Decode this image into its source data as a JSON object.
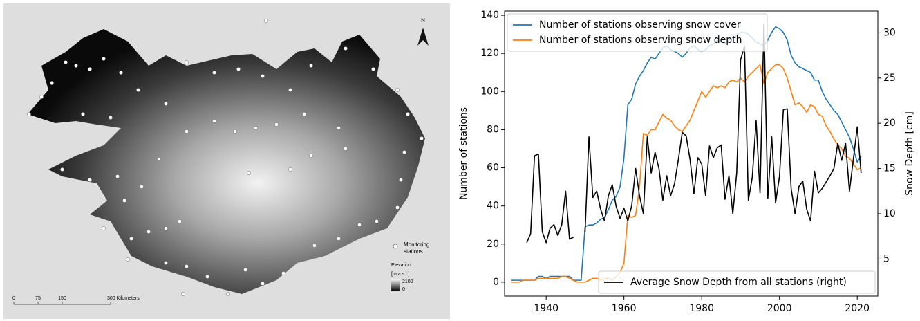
{
  "map": {
    "north": "N",
    "station_label": [
      "Monitoring",
      "stations"
    ],
    "elevation_title": "Elevation",
    "elevation_unit": "[m a.s.l.]",
    "elevation_ticks": [
      2100,
      0
    ],
    "scale_labels": [
      "0",
      "75",
      "150",
      "300 Kilometers"
    ]
  },
  "chart_data": {
    "type": "line",
    "x": [
      1931,
      1932,
      1933,
      1934,
      1935,
      1936,
      1937,
      1938,
      1939,
      1940,
      1941,
      1942,
      1943,
      1944,
      1945,
      1946,
      1947,
      1948,
      1949,
      1950,
      1951,
      1952,
      1953,
      1954,
      1955,
      1956,
      1957,
      1958,
      1959,
      1960,
      1961,
      1962,
      1963,
      1964,
      1965,
      1966,
      1967,
      1968,
      1969,
      1970,
      1971,
      1972,
      1973,
      1974,
      1975,
      1976,
      1977,
      1978,
      1979,
      1980,
      1981,
      1982,
      1983,
      1984,
      1985,
      1986,
      1987,
      1988,
      1989,
      1990,
      1991,
      1992,
      1993,
      1994,
      1995,
      1996,
      1997,
      1998,
      1999,
      2000,
      2001,
      2002,
      2003,
      2004,
      2005,
      2006,
      2007,
      2008,
      2009,
      2010,
      2011,
      2012,
      2013,
      2014,
      2015,
      2016,
      2017,
      2018,
      2019,
      2020,
      2021
    ],
    "series": [
      {
        "name": "Number of stations observing snow cover",
        "color": "#1f77b4",
        "legend": "upper left",
        "values": [
          1,
          1,
          1,
          1,
          1,
          1,
          1,
          3,
          3,
          2,
          3,
          3,
          3,
          3,
          3,
          3,
          1,
          1,
          1,
          29,
          30,
          30,
          31,
          33,
          34,
          38,
          43,
          45,
          50,
          65,
          93,
          96,
          104,
          108,
          111,
          115,
          118,
          117,
          120,
          123,
          124,
          122,
          121,
          120,
          118,
          120,
          123,
          124,
          122,
          121,
          122,
          124,
          125,
          127,
          126,
          125,
          127,
          128,
          130,
          131,
          131,
          130,
          128,
          126,
          125,
          124,
          127,
          131,
          134,
          133,
          131,
          127,
          119,
          115,
          113,
          112,
          111,
          110,
          106,
          106,
          100,
          96,
          93,
          90,
          88,
          84,
          80,
          76,
          70,
          63,
          66
        ]
      },
      {
        "name": "Number of stations observing snow depth",
        "color": "#ff7f0e",
        "legend": "upper left",
        "values": [
          0,
          0,
          0,
          1,
          1,
          1,
          1,
          2,
          2,
          2,
          2,
          2,
          2,
          3,
          3,
          2,
          1,
          0,
          0,
          0,
          1,
          2,
          2,
          1,
          2,
          2,
          1,
          3,
          5,
          10,
          35,
          34,
          35,
          50,
          78,
          77,
          80,
          80,
          84,
          88,
          86,
          85,
          82,
          80,
          79,
          82,
          85,
          90,
          95,
          100,
          97,
          100,
          103,
          102,
          103,
          102,
          105,
          106,
          105,
          107,
          105,
          108,
          110,
          112,
          114,
          104,
          110,
          112,
          114,
          114,
          112,
          107,
          100,
          93,
          94,
          92,
          89,
          93,
          92,
          88,
          87,
          82,
          79,
          75,
          72,
          70,
          66,
          65,
          62,
          59,
          60
        ]
      },
      {
        "name": "Average Snow Depth from all stations (right)",
        "color": "#000000",
        "axis": "y2",
        "legend": "lower right",
        "values": [
          null,
          null,
          null,
          null,
          6.8,
          7.8,
          16.4,
          16.6,
          8.0,
          6.8,
          8.4,
          8.8,
          7.6,
          8.8,
          12.5,
          7.2,
          7.4,
          null,
          null,
          8.0,
          18.5,
          11.8,
          12.5,
          10.5,
          9.2,
          12.0,
          13.2,
          10.8,
          9.5,
          10.6,
          9.2,
          10.9,
          15.0,
          12.0,
          10.0,
          18.5,
          14.5,
          16.8,
          15.0,
          11.5,
          14.2,
          12.0,
          13.3,
          16.0,
          19.0,
          18.6,
          16.0,
          12.2,
          16.2,
          15.5,
          12.0,
          17.5,
          16.2,
          17.3,
          17.6,
          11.6,
          14.2,
          10.0,
          14.5,
          27.0,
          28.5,
          11.5,
          14.0,
          20.3,
          12.3,
          31.0,
          11.7,
          18.5,
          11.2,
          14.1,
          21.5,
          21.6,
          12.8,
          10.0,
          13.0,
          13.6,
          10.5,
          9.2,
          14.7,
          12.3,
          12.8,
          13.5,
          14.2,
          15.0,
          17.8,
          15.9,
          17.8,
          12.5,
          16.0,
          19.6,
          14.5
        ]
      }
    ],
    "xlim": [
      1929.3,
      2025.3
    ],
    "xticks": [
      1940,
      1960,
      1980,
      2000,
      2020
    ],
    "ylim": [
      -7.3,
      142.2
    ],
    "yticks": [
      0,
      20,
      40,
      60,
      80,
      100,
      120,
      140
    ],
    "y2lim": [
      0.9,
      32.4
    ],
    "y2ticks": [
      5,
      10,
      15,
      20,
      25,
      30
    ],
    "ylabel": "Number of stations",
    "y2label": "Snow Depth [cm]"
  }
}
